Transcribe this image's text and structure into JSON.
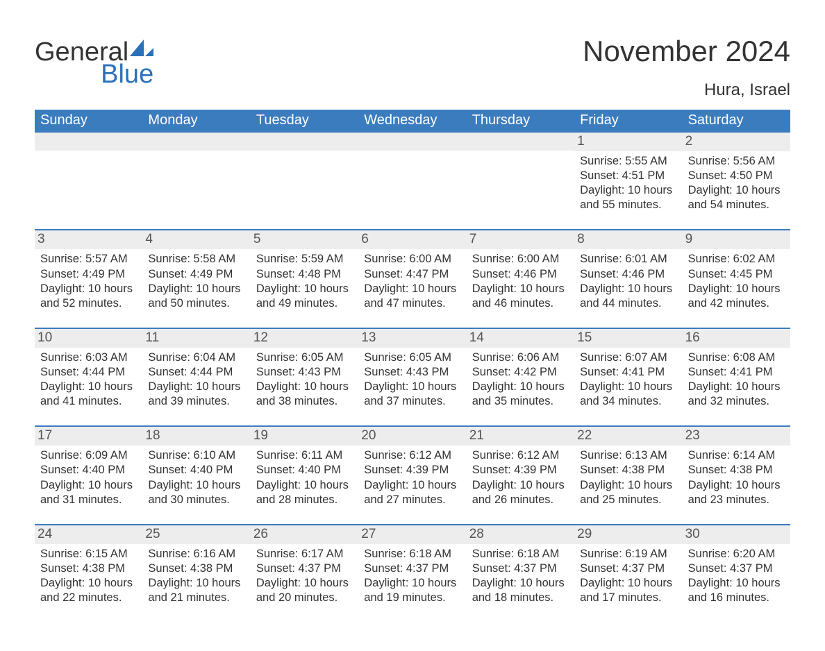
{
  "logo": {
    "text1": "General",
    "text2": "Blue",
    "accent_color": "#2a71b8"
  },
  "title": "November 2024",
  "location": "Hura, Israel",
  "colors": {
    "header_bg": "#3b7cbf",
    "header_text": "#ffffff",
    "strip_bg": "#ededed",
    "rule": "#3b7cbf",
    "body_text": "#333333"
  },
  "weekdays": [
    "Sunday",
    "Monday",
    "Tuesday",
    "Wednesday",
    "Thursday",
    "Friday",
    "Saturday"
  ],
  "weeks": [
    [
      null,
      null,
      null,
      null,
      null,
      {
        "d": "1",
        "sr": "Sunrise: 5:55 AM",
        "ss": "Sunset: 4:51 PM",
        "dl": "Daylight: 10 hours and 55 minutes."
      },
      {
        "d": "2",
        "sr": "Sunrise: 5:56 AM",
        "ss": "Sunset: 4:50 PM",
        "dl": "Daylight: 10 hours and 54 minutes."
      }
    ],
    [
      {
        "d": "3",
        "sr": "Sunrise: 5:57 AM",
        "ss": "Sunset: 4:49 PM",
        "dl": "Daylight: 10 hours and 52 minutes."
      },
      {
        "d": "4",
        "sr": "Sunrise: 5:58 AM",
        "ss": "Sunset: 4:49 PM",
        "dl": "Daylight: 10 hours and 50 minutes."
      },
      {
        "d": "5",
        "sr": "Sunrise: 5:59 AM",
        "ss": "Sunset: 4:48 PM",
        "dl": "Daylight: 10 hours and 49 minutes."
      },
      {
        "d": "6",
        "sr": "Sunrise: 6:00 AM",
        "ss": "Sunset: 4:47 PM",
        "dl": "Daylight: 10 hours and 47 minutes."
      },
      {
        "d": "7",
        "sr": "Sunrise: 6:00 AM",
        "ss": "Sunset: 4:46 PM",
        "dl": "Daylight: 10 hours and 46 minutes."
      },
      {
        "d": "8",
        "sr": "Sunrise: 6:01 AM",
        "ss": "Sunset: 4:46 PM",
        "dl": "Daylight: 10 hours and 44 minutes."
      },
      {
        "d": "9",
        "sr": "Sunrise: 6:02 AM",
        "ss": "Sunset: 4:45 PM",
        "dl": "Daylight: 10 hours and 42 minutes."
      }
    ],
    [
      {
        "d": "10",
        "sr": "Sunrise: 6:03 AM",
        "ss": "Sunset: 4:44 PM",
        "dl": "Daylight: 10 hours and 41 minutes."
      },
      {
        "d": "11",
        "sr": "Sunrise: 6:04 AM",
        "ss": "Sunset: 4:44 PM",
        "dl": "Daylight: 10 hours and 39 minutes."
      },
      {
        "d": "12",
        "sr": "Sunrise: 6:05 AM",
        "ss": "Sunset: 4:43 PM",
        "dl": "Daylight: 10 hours and 38 minutes."
      },
      {
        "d": "13",
        "sr": "Sunrise: 6:05 AM",
        "ss": "Sunset: 4:43 PM",
        "dl": "Daylight: 10 hours and 37 minutes."
      },
      {
        "d": "14",
        "sr": "Sunrise: 6:06 AM",
        "ss": "Sunset: 4:42 PM",
        "dl": "Daylight: 10 hours and 35 minutes."
      },
      {
        "d": "15",
        "sr": "Sunrise: 6:07 AM",
        "ss": "Sunset: 4:41 PM",
        "dl": "Daylight: 10 hours and 34 minutes."
      },
      {
        "d": "16",
        "sr": "Sunrise: 6:08 AM",
        "ss": "Sunset: 4:41 PM",
        "dl": "Daylight: 10 hours and 32 minutes."
      }
    ],
    [
      {
        "d": "17",
        "sr": "Sunrise: 6:09 AM",
        "ss": "Sunset: 4:40 PM",
        "dl": "Daylight: 10 hours and 31 minutes."
      },
      {
        "d": "18",
        "sr": "Sunrise: 6:10 AM",
        "ss": "Sunset: 4:40 PM",
        "dl": "Daylight: 10 hours and 30 minutes."
      },
      {
        "d": "19",
        "sr": "Sunrise: 6:11 AM",
        "ss": "Sunset: 4:40 PM",
        "dl": "Daylight: 10 hours and 28 minutes."
      },
      {
        "d": "20",
        "sr": "Sunrise: 6:12 AM",
        "ss": "Sunset: 4:39 PM",
        "dl": "Daylight: 10 hours and 27 minutes."
      },
      {
        "d": "21",
        "sr": "Sunrise: 6:12 AM",
        "ss": "Sunset: 4:39 PM",
        "dl": "Daylight: 10 hours and 26 minutes."
      },
      {
        "d": "22",
        "sr": "Sunrise: 6:13 AM",
        "ss": "Sunset: 4:38 PM",
        "dl": "Daylight: 10 hours and 25 minutes."
      },
      {
        "d": "23",
        "sr": "Sunrise: 6:14 AM",
        "ss": "Sunset: 4:38 PM",
        "dl": "Daylight: 10 hours and 23 minutes."
      }
    ],
    [
      {
        "d": "24",
        "sr": "Sunrise: 6:15 AM",
        "ss": "Sunset: 4:38 PM",
        "dl": "Daylight: 10 hours and 22 minutes."
      },
      {
        "d": "25",
        "sr": "Sunrise: 6:16 AM",
        "ss": "Sunset: 4:38 PM",
        "dl": "Daylight: 10 hours and 21 minutes."
      },
      {
        "d": "26",
        "sr": "Sunrise: 6:17 AM",
        "ss": "Sunset: 4:37 PM",
        "dl": "Daylight: 10 hours and 20 minutes."
      },
      {
        "d": "27",
        "sr": "Sunrise: 6:18 AM",
        "ss": "Sunset: 4:37 PM",
        "dl": "Daylight: 10 hours and 19 minutes."
      },
      {
        "d": "28",
        "sr": "Sunrise: 6:18 AM",
        "ss": "Sunset: 4:37 PM",
        "dl": "Daylight: 10 hours and 18 minutes."
      },
      {
        "d": "29",
        "sr": "Sunrise: 6:19 AM",
        "ss": "Sunset: 4:37 PM",
        "dl": "Daylight: 10 hours and 17 minutes."
      },
      {
        "d": "30",
        "sr": "Sunrise: 6:20 AM",
        "ss": "Sunset: 4:37 PM",
        "dl": "Daylight: 10 hours and 16 minutes."
      }
    ]
  ]
}
